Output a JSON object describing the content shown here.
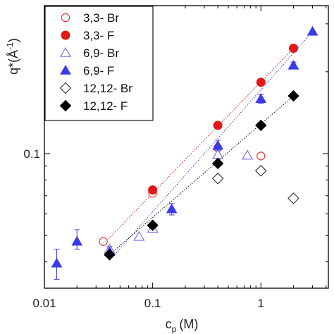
{
  "chart_data": {
    "type": "scatter",
    "xlabel_main": "c",
    "xlabel_sub": "p",
    "xlabel_unit": "(M)",
    "ylabel_main": "q*(Å",
    "ylabel_sup": "-1",
    "ylabel_close": ")",
    "xscale": "log",
    "yscale": "log",
    "xlim": [
      0.01,
      4.2
    ],
    "ylim": [
      0.032,
      0.35
    ],
    "x_ticks": [
      {
        "value": 0.01,
        "label": "0.01"
      },
      {
        "value": 0.1,
        "label": "0.1"
      },
      {
        "value": 1,
        "label": "1"
      }
    ],
    "y_ticks": [
      {
        "value": 0.1,
        "label": "0.1"
      }
    ],
    "legend_position": "top-left",
    "series": [
      {
        "name": "3,3- Br",
        "marker": "circle-open",
        "color": "#e03030",
        "points": [
          [
            0.035,
            0.0475
          ],
          [
            0.1,
            0.0715
          ],
          [
            0.4,
            0.105
          ],
          [
            1.0,
            0.098
          ]
        ]
      },
      {
        "name": "3,3- F",
        "marker": "circle-filled",
        "color": "#e01818",
        "points": [
          [
            0.1,
            0.0735
          ],
          [
            0.4,
            0.127
          ],
          [
            1.0,
            0.183
          ],
          [
            2.0,
            0.244
          ]
        ],
        "fit": [
          [
            0.035,
            0.0465
          ],
          [
            2.0,
            0.244
          ]
        ]
      },
      {
        "name": "6,9- Br",
        "marker": "triangle-open",
        "color": "#6a6ae0",
        "points": [
          [
            0.04,
            0.0445
          ],
          [
            0.075,
            0.0495
          ],
          [
            0.1,
            0.053
          ],
          [
            0.4,
            0.099
          ],
          [
            0.75,
            0.0985
          ]
        ]
      },
      {
        "name": "6,9- F",
        "marker": "triangle-filled",
        "color": "#3a3aea",
        "points": [
          [
            0.013,
            0.0395
          ],
          [
            0.02,
            0.0475
          ],
          [
            0.04,
            0.0435
          ],
          [
            0.15,
            0.0625
          ],
          [
            0.4,
            0.107
          ],
          [
            1.0,
            0.159
          ],
          [
            2.0,
            0.211
          ],
          [
            3.0,
            0.281
          ]
        ],
        "err_low": [
          0.0345,
          0.0445,
          0.0415,
          0.0595,
          0.103,
          0.153,
          0.205,
          0.281
        ],
        "err_high": [
          0.0445,
          0.0525,
          0.0455,
          0.0655,
          0.112,
          0.165,
          0.217,
          0.281
        ],
        "fit": [
          [
            0.04,
            0.0405
          ],
          [
            3.0,
            0.281
          ]
        ]
      },
      {
        "name": "12,12- Br",
        "marker": "diamond-open",
        "color": "#333333",
        "points": [
          [
            0.4,
            0.081
          ],
          [
            1.0,
            0.0865
          ],
          [
            2.0,
            0.0685
          ]
        ]
      },
      {
        "name": "12,12- F",
        "marker": "diamond-filled",
        "color": "#000000",
        "points": [
          [
            0.04,
            0.0425
          ],
          [
            0.1,
            0.0545
          ],
          [
            0.4,
            0.092
          ],
          [
            1.0,
            0.127
          ],
          [
            2.0,
            0.163
          ]
        ],
        "fit": [
          [
            0.04,
            0.0425
          ],
          [
            2.0,
            0.163
          ]
        ]
      }
    ]
  }
}
